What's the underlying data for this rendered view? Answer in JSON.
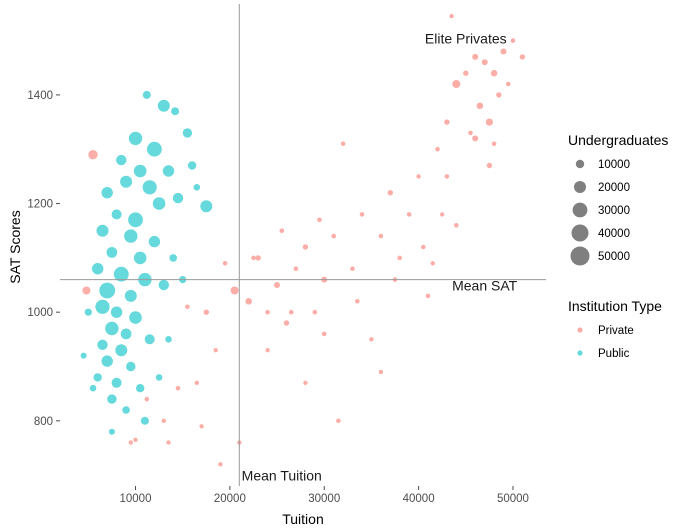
{
  "chart_data": {
    "type": "scatter",
    "xlabel": "Tuition",
    "ylabel": "SAT Scores",
    "xlim": [
      2000,
      53500
    ],
    "ylim": [
      680,
      1560
    ],
    "x_ticks": [
      10000,
      20000,
      30000,
      40000,
      50000
    ],
    "y_ticks": [
      800,
      1000,
      1200,
      1400
    ],
    "grid": false,
    "reference_lines": [
      {
        "axis": "x",
        "value": 21000,
        "label": "Mean Tuition"
      },
      {
        "axis": "y",
        "value": 1060,
        "label": "Mean SAT"
      }
    ],
    "annotations": [
      {
        "text": "Elite Privates",
        "x": 45000,
        "y": 1495
      },
      {
        "text": "Mean SAT",
        "x": 47000,
        "y": 1040
      },
      {
        "text": "Mean Tuition",
        "x": 25500,
        "y": 690
      }
    ],
    "size_legend": {
      "title": "Undergraduates",
      "values": [
        10000,
        20000,
        30000,
        40000,
        50000
      ]
    },
    "color_legend": {
      "title": "Institution Type",
      "placement": "right"
    },
    "series": [
      {
        "name": "Private",
        "color": "#F8766D",
        "points": [
          [
            5500,
            1290,
            12000
          ],
          [
            4800,
            1040,
            9000
          ],
          [
            9500,
            760,
            2000
          ],
          [
            10000,
            765,
            2000
          ],
          [
            11200,
            840,
            3000
          ],
          [
            13000,
            800,
            2500
          ],
          [
            14500,
            860,
            3000
          ],
          [
            15500,
            1010,
            3000
          ],
          [
            16500,
            870,
            2000
          ],
          [
            17500,
            1000,
            4000
          ],
          [
            18500,
            930,
            2500
          ],
          [
            19500,
            1090,
            3000
          ],
          [
            20500,
            1040,
            9000
          ],
          [
            22000,
            1020,
            6000
          ],
          [
            23000,
            1100,
            4000
          ],
          [
            24000,
            1000,
            3000
          ],
          [
            25000,
            1050,
            5000
          ],
          [
            26000,
            980,
            4000
          ],
          [
            27000,
            1080,
            3000
          ],
          [
            28000,
            1120,
            4000
          ],
          [
            29000,
            1000,
            3000
          ],
          [
            30000,
            1060,
            5000
          ],
          [
            31000,
            1140,
            3000
          ],
          [
            32000,
            1310,
            3000
          ],
          [
            33000,
            1080,
            3000
          ],
          [
            34000,
            1180,
            3000
          ],
          [
            35000,
            950,
            2500
          ],
          [
            36000,
            1140,
            3000
          ],
          [
            37000,
            1220,
            4000
          ],
          [
            38000,
            1100,
            3000
          ],
          [
            39000,
            1180,
            3000
          ],
          [
            40000,
            1250,
            2500
          ],
          [
            41000,
            1030,
            3000
          ],
          [
            42000,
            1300,
            3000
          ],
          [
            43000,
            1350,
            4000
          ],
          [
            44000,
            1420,
            9000
          ],
          [
            45000,
            1440,
            4000
          ],
          [
            45500,
            1330,
            3000
          ],
          [
            46000,
            1470,
            5000
          ],
          [
            46500,
            1380,
            6000
          ],
          [
            47000,
            1460,
            5000
          ],
          [
            47500,
            1350,
            7000
          ],
          [
            48000,
            1440,
            6000
          ],
          [
            48500,
            1400,
            4000
          ],
          [
            49000,
            1480,
            5000
          ],
          [
            49500,
            1420,
            3000
          ],
          [
            50000,
            1500,
            3000
          ],
          [
            51000,
            1470,
            4000
          ],
          [
            43500,
            1545,
            2000
          ],
          [
            47500,
            1270,
            4000
          ],
          [
            44000,
            1160,
            3000
          ],
          [
            42500,
            1180,
            2500
          ],
          [
            41500,
            1090,
            2500
          ],
          [
            36000,
            890,
            2500
          ],
          [
            31500,
            800,
            3000
          ],
          [
            28000,
            870,
            2500
          ],
          [
            24000,
            930,
            2500
          ],
          [
            21000,
            760,
            2000
          ],
          [
            19000,
            720,
            2000
          ],
          [
            17000,
            790,
            2500
          ],
          [
            13500,
            760,
            2000
          ],
          [
            26500,
            1000,
            3000
          ],
          [
            30000,
            960,
            3000
          ],
          [
            33500,
            1020,
            3000
          ],
          [
            37500,
            1060,
            3000
          ],
          [
            40500,
            1120,
            3000
          ],
          [
            43000,
            1250,
            3000
          ],
          [
            46000,
            1320,
            5000
          ],
          [
            48000,
            1310,
            3000
          ],
          [
            22500,
            1100,
            3000
          ],
          [
            25500,
            1150,
            3000
          ],
          [
            29500,
            1170,
            3000
          ]
        ]
      },
      {
        "name": "Public",
        "color": "#00BFC4",
        "points": [
          [
            11200,
            1400,
            9000
          ],
          [
            13000,
            1380,
            20000
          ],
          [
            14200,
            1370,
            9000
          ],
          [
            15500,
            1330,
            12000
          ],
          [
            10000,
            1320,
            25000
          ],
          [
            12000,
            1300,
            30000
          ],
          [
            8500,
            1280,
            15000
          ],
          [
            10500,
            1260,
            22000
          ],
          [
            13500,
            1260,
            18000
          ],
          [
            16000,
            1270,
            10000
          ],
          [
            9000,
            1240,
            20000
          ],
          [
            11500,
            1230,
            28000
          ],
          [
            7000,
            1220,
            18000
          ],
          [
            12500,
            1200,
            22000
          ],
          [
            14500,
            1210,
            15000
          ],
          [
            17500,
            1195,
            20000
          ],
          [
            8000,
            1180,
            14000
          ],
          [
            10000,
            1170,
            30000
          ],
          [
            6500,
            1150,
            20000
          ],
          [
            9500,
            1140,
            25000
          ],
          [
            12000,
            1130,
            18000
          ],
          [
            7500,
            1110,
            16000
          ],
          [
            10500,
            1100,
            22000
          ],
          [
            6000,
            1080,
            18000
          ],
          [
            8500,
            1070,
            30000
          ],
          [
            11000,
            1060,
            25000
          ],
          [
            13000,
            1050,
            15000
          ],
          [
            7000,
            1040,
            35000
          ],
          [
            9500,
            1030,
            20000
          ],
          [
            6500,
            1010,
            28000
          ],
          [
            8000,
            1000,
            18000
          ],
          [
            10000,
            990,
            22000
          ],
          [
            7500,
            970,
            25000
          ],
          [
            9000,
            960,
            16000
          ],
          [
            11500,
            950,
            14000
          ],
          [
            6500,
            940,
            15000
          ],
          [
            8500,
            930,
            20000
          ],
          [
            7000,
            910,
            18000
          ],
          [
            9500,
            900,
            12000
          ],
          [
            6000,
            880,
            10000
          ],
          [
            8000,
            870,
            14000
          ],
          [
            10500,
            860,
            10000
          ],
          [
            7500,
            840,
            12000
          ],
          [
            9000,
            820,
            8000
          ],
          [
            11000,
            800,
            9000
          ],
          [
            5500,
            860,
            6000
          ],
          [
            4500,
            920,
            5000
          ],
          [
            13500,
            950,
            6000
          ],
          [
            14000,
            1100,
            8000
          ],
          [
            15000,
            1060,
            7000
          ],
          [
            16500,
            1230,
            6000
          ],
          [
            5000,
            1000,
            7000
          ],
          [
            7500,
            780,
            5000
          ],
          [
            12500,
            880,
            6000
          ]
        ]
      }
    ]
  }
}
